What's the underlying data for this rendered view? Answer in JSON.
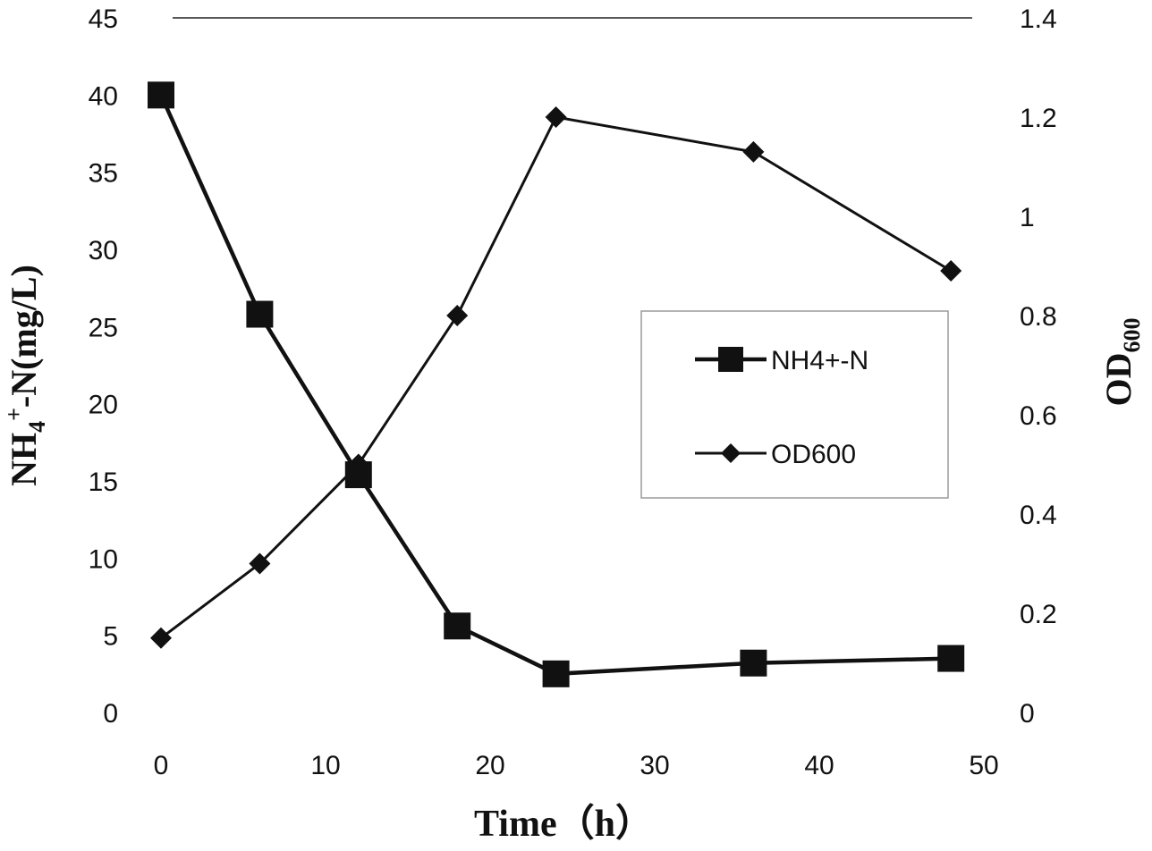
{
  "chart_data": {
    "type": "line",
    "title": "",
    "xlabel": "Time（h）",
    "ylabel_left_main": "NH",
    "ylabel_left_sub": "4",
    "ylabel_left_sup": "+",
    "ylabel_left_rest": "-N(mg/L)",
    "ylabel_right_main": "OD",
    "ylabel_right_sub": "600",
    "xlim": [
      0,
      50
    ],
    "ylim_left": [
      0,
      45
    ],
    "ylim_right": [
      0,
      1.4
    ],
    "x_ticks": [
      "0",
      "10",
      "20",
      "30",
      "40",
      "50"
    ],
    "y_left_ticks": [
      "0",
      "5",
      "10",
      "15",
      "20",
      "25",
      "30",
      "35",
      "40",
      "45"
    ],
    "y_right_ticks": [
      "0",
      "0.2",
      "0.4",
      "0.6",
      "0.8",
      "1",
      "1.2",
      "1.4"
    ],
    "grid": false,
    "legend_position": "right",
    "series": [
      {
        "name": "NH4+-N",
        "axis": "left",
        "marker": "square",
        "x": [
          0,
          6,
          12,
          18,
          24,
          36,
          48
        ],
        "y": [
          40,
          25.8,
          15.4,
          5.6,
          2.5,
          3.2,
          3.5
        ]
      },
      {
        "name": "OD600",
        "axis": "right",
        "marker": "diamond",
        "x": [
          0,
          6,
          12,
          18,
          24,
          36,
          48
        ],
        "y": [
          0.15,
          0.3,
          0.5,
          0.8,
          1.2,
          1.13,
          0.89
        ]
      }
    ]
  }
}
